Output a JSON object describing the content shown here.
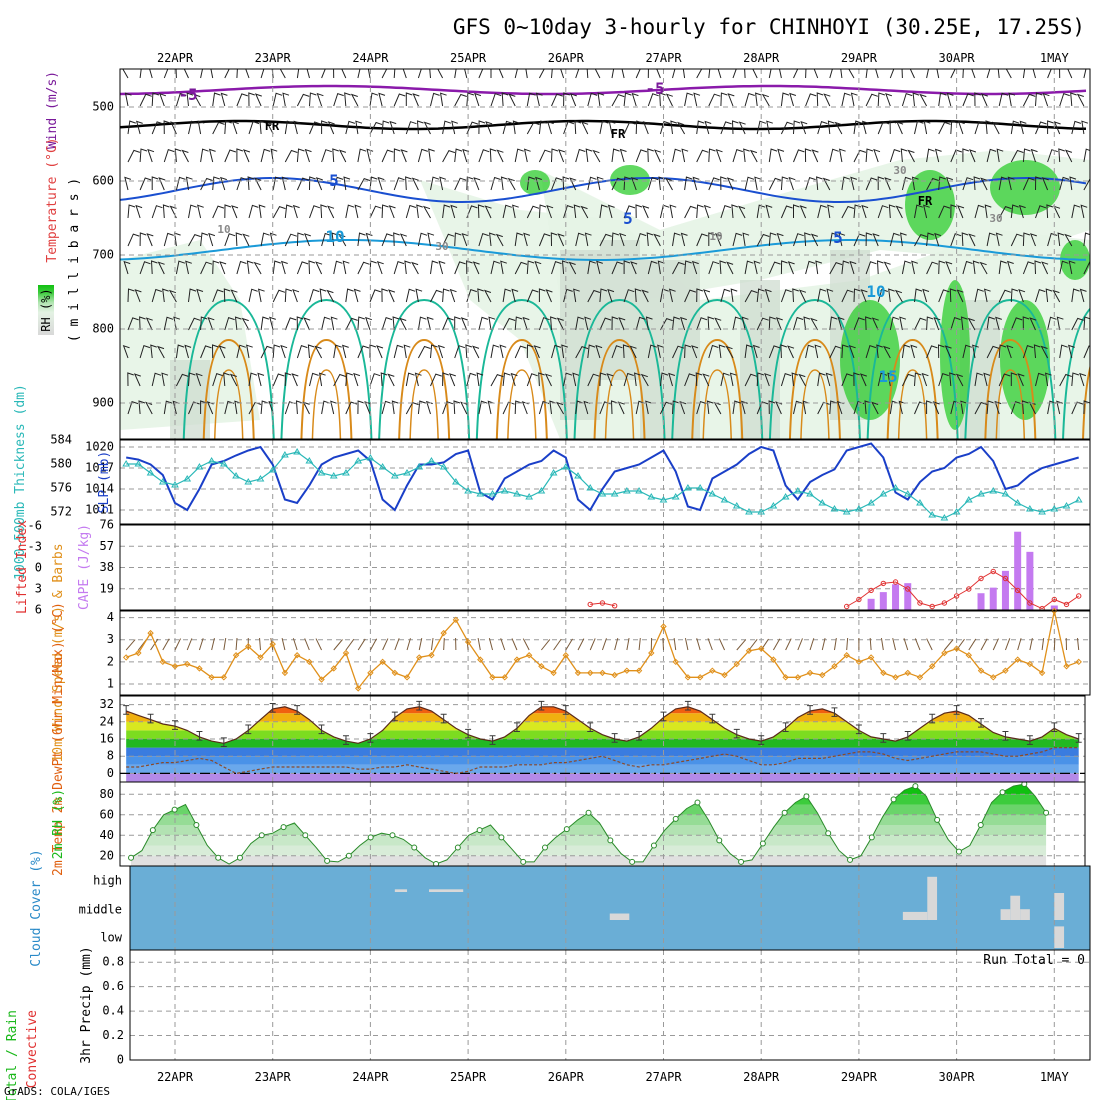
{
  "title": "GFS 0~10day 3-hourly for CHINHOYI (30.25E, 17.25S)",
  "credit": "GrADS: COLA/IGES",
  "dates": [
    "22APR",
    "23APR",
    "24APR",
    "25APR",
    "26APR",
    "27APR",
    "28APR",
    "29APR",
    "30APR",
    "1MAY"
  ],
  "colors": {
    "rh_green": "#2ecc2e",
    "temp_purple": "#8a1aaa",
    "temp_blue": "#1a4fd0",
    "temp_lightblue": "#1a9ad8",
    "temp_teal": "#1ab898",
    "temp_orange": "#d88a1a",
    "slp": "#1a3fc8",
    "thickness": "#2ab8b8",
    "cape": "#c47af0",
    "lifted": "#e03030",
    "wind10m": "#e0901a",
    "cloud_bg": "#6aaed6",
    "cloud_bar": "#d8d8d8"
  },
  "chart_data": [
    {
      "type": "heatmap",
      "panel": "upper-air cross section",
      "ylabel_parts": [
        "Wind (m/s)",
        "Temperature (°C)",
        "RH (%)"
      ],
      "ylabel_units": "( m i l l i b a r s )",
      "y_ticks": [
        "500",
        "600",
        "700",
        "800",
        "900"
      ],
      "contour_labels": [
        "-5",
        "-5",
        "FR",
        "FR",
        "FR",
        "5",
        "5",
        "5",
        "10",
        "10",
        "15",
        "10",
        "30",
        "30",
        "10",
        "30"
      ],
      "rh_scale": "RH (%)"
    },
    {
      "type": "line",
      "panel": "thickness and sea level pressure",
      "ylabel_left": "1000-500mb Thickness (dm)",
      "ylabel_right": "SLP (mb)",
      "left_ticks": [
        "584",
        "580",
        "576",
        "572"
      ],
      "right_ticks": [
        "1020",
        "1017",
        "1014",
        "1011"
      ],
      "left_ylim": [
        570,
        584
      ],
      "right_ylim": [
        1009,
        1021
      ],
      "series": [
        {
          "name": "SLP (mb)",
          "values": [
            1018.5,
            1018.2,
            1017.5,
            1016.0,
            1012.0,
            1011.0,
            1014.0,
            1017.5,
            1018.0,
            1018.8,
            1019.5,
            1020.0,
            1017.5,
            1012.5,
            1012.0,
            1014.5,
            1017.5,
            1018.5,
            1019.0,
            1019.5,
            1018.0,
            1012.5,
            1011.0,
            1014.5,
            1017.5,
            1017.5,
            1017.8,
            1019.0,
            1019.5,
            1013.5,
            1012.5,
            1015.5,
            1016.5,
            1017.5,
            1018.0,
            1019.5,
            1018.5,
            1012.5,
            1011.0,
            1014.0,
            1016.5,
            1017.0,
            1017.5,
            1018.5,
            1019.5,
            1016.5,
            1011.5,
            1011.0,
            1015.5,
            1016.5,
            1017.5,
            1019.0,
            1020.0,
            1019.5,
            1014.5,
            1012.5,
            1015.0,
            1016.0,
            1016.8,
            1019.5,
            1020.0,
            1020.5,
            1018.5,
            1013.5,
            1012.5,
            1015.0,
            1016.5,
            1017.0,
            1018.5,
            1019.0,
            1020.0,
            1018.0,
            1014.0,
            1014.5,
            1016.0,
            1017.0,
            1017.5,
            1018.0,
            1018.5
          ]
        },
        {
          "name": "1000-500mb Thickness (dm)",
          "values": [
            580.0,
            580.0,
            578.5,
            577.0,
            576.5,
            577.5,
            579.5,
            580.5,
            580.0,
            578.0,
            577.0,
            577.5,
            579.0,
            581.5,
            582.0,
            580.5,
            578.5,
            578.0,
            578.5,
            580.5,
            581.0,
            579.5,
            578.0,
            578.5,
            579.5,
            580.5,
            579.5,
            577.0,
            575.5,
            575.0,
            575.0,
            575.5,
            575.0,
            574.5,
            575.5,
            578.5,
            579.5,
            578.0,
            576.0,
            575.0,
            575.0,
            575.5,
            575.5,
            574.5,
            574.0,
            574.5,
            576.0,
            576.0,
            575.0,
            574.0,
            573.0,
            572.0,
            572.0,
            573.0,
            574.5,
            575.5,
            575.0,
            573.5,
            572.5,
            572.0,
            572.5,
            573.5,
            575.0,
            576.0,
            575.0,
            573.5,
            571.5,
            571.0,
            572.0,
            574.0,
            575.0,
            575.5,
            575.0,
            573.5,
            572.5,
            572.0,
            572.5,
            573.0,
            574.0
          ]
        }
      ]
    },
    {
      "type": "bar",
      "panel": "CAPE and lifted index",
      "ylabel_left": "Lifted Index",
      "ylabel_right": "CAPE (J/kg)",
      "left_ticks": [
        "-6",
        "-3",
        "0",
        "3",
        "6"
      ],
      "right_ticks": [
        "76",
        "57",
        "38",
        "19"
      ],
      "left_ylim": [
        6,
        -6
      ],
      "right_ylim": [
        0,
        76
      ],
      "cape_bars": [
        {
          "x": 29.125,
          "value": 10
        },
        {
          "x": 29.25,
          "value": 16
        },
        {
          "x": 29.375,
          "value": 23
        },
        {
          "x": 29.5,
          "value": 24
        },
        {
          "x": 30.25,
          "value": 15
        },
        {
          "x": 30.375,
          "value": 20
        },
        {
          "x": 30.5,
          "value": 35
        },
        {
          "x": 30.625,
          "value": 70
        },
        {
          "x": 30.75,
          "value": 52
        },
        {
          "x": 31.0,
          "value": 4
        }
      ],
      "lifted_index": [
        {
          "x": 26.25,
          "value": 5.2
        },
        {
          "x": 26.375,
          "value": 5.0
        },
        {
          "x": 26.5,
          "value": 5.4
        },
        {
          "x": 28.875,
          "value": 5.5
        },
        {
          "x": 29.0,
          "value": 4.5
        },
        {
          "x": 29.125,
          "value": 3.2
        },
        {
          "x": 29.25,
          "value": 2.2
        },
        {
          "x": 29.375,
          "value": 2.0
        },
        {
          "x": 29.5,
          "value": 3.0
        },
        {
          "x": 29.625,
          "value": 5.0
        },
        {
          "x": 29.75,
          "value": 5.5
        },
        {
          "x": 29.875,
          "value": 5.0
        },
        {
          "x": 30.0,
          "value": 4.0
        },
        {
          "x": 30.125,
          "value": 3.0
        },
        {
          "x": 30.25,
          "value": 1.5
        },
        {
          "x": 30.375,
          "value": 0.5
        },
        {
          "x": 30.5,
          "value": 1.5
        },
        {
          "x": 30.625,
          "value": 3.2
        },
        {
          "x": 30.75,
          "value": 5.0
        },
        {
          "x": 30.875,
          "value": 5.8
        },
        {
          "x": 31.0,
          "value": 4.5
        },
        {
          "x": 31.125,
          "value": 5.2
        },
        {
          "x": 31.25,
          "value": 4.0
        }
      ]
    },
    {
      "type": "line",
      "panel": "10m wind",
      "ylabel": "10m Wind Speed (m/s) & Barbs",
      "y_ticks": [
        "4",
        "3",
        "2",
        "1"
      ],
      "ylim": [
        0.5,
        4.3
      ],
      "series": [
        {
          "name": "10m Wind Speed",
          "values": [
            2.2,
            2.4,
            3.3,
            2.0,
            1.8,
            1.9,
            1.7,
            1.3,
            1.3,
            2.3,
            2.7,
            2.2,
            2.8,
            1.5,
            2.3,
            2.0,
            1.2,
            1.7,
            2.4,
            0.8,
            1.5,
            2.0,
            1.5,
            1.3,
            2.2,
            2.3,
            3.3,
            3.9,
            2.9,
            2.1,
            1.3,
            1.3,
            2.1,
            2.3,
            1.8,
            1.5,
            2.3,
            1.5,
            1.5,
            1.5,
            1.4,
            1.6,
            1.6,
            2.4,
            3.6,
            2.0,
            1.3,
            1.3,
            1.6,
            1.4,
            1.9,
            2.5,
            2.6,
            2.1,
            1.3,
            1.3,
            1.5,
            1.4,
            1.8,
            2.3,
            2.0,
            2.2,
            1.5,
            1.3,
            1.5,
            1.3,
            1.8,
            2.4,
            2.6,
            2.3,
            1.6,
            1.3,
            1.6,
            2.1,
            1.9,
            1.5,
            4.3,
            1.8,
            2.0
          ]
        }
      ]
    },
    {
      "type": "area",
      "panel": "2m temperature and dew point",
      "ylabel": "2m Temp 2m DewPt (6hr Min/Max) (°C)",
      "y_ticks": [
        "32",
        "24",
        "16",
        "8",
        "0"
      ],
      "ylim": [
        -4,
        36
      ],
      "series": [
        {
          "name": "2m Temp",
          "values": [
            29,
            27,
            25,
            23,
            22,
            20,
            17,
            15,
            14,
            16,
            20,
            25,
            30,
            31,
            29,
            25,
            20,
            17,
            15,
            14,
            16,
            20,
            26,
            30,
            31,
            29,
            25,
            21,
            18,
            16,
            15,
            17,
            21,
            27,
            31,
            31,
            29,
            25,
            21,
            18,
            16,
            15,
            17,
            21,
            26,
            30,
            31,
            29,
            25,
            21,
            18,
            16,
            15,
            17,
            21,
            26,
            29,
            30,
            28,
            24,
            20,
            17,
            16,
            15,
            17,
            21,
            25,
            28,
            29,
            27,
            23,
            19,
            17,
            16,
            15,
            17,
            21,
            18,
            16
          ]
        },
        {
          "name": "2m DewPt",
          "values": [
            3,
            3,
            4,
            5,
            5,
            6,
            7,
            6,
            3,
            0,
            1,
            2,
            3,
            3,
            3,
            3,
            3,
            3,
            3,
            2,
            2,
            3,
            3,
            4,
            3,
            2,
            1,
            0,
            1,
            3,
            3,
            3,
            4,
            4,
            4,
            5,
            5,
            6,
            7,
            8,
            6,
            4,
            3,
            4,
            4,
            5,
            6,
            7,
            8,
            9,
            8,
            6,
            4,
            4,
            5,
            7,
            7,
            7,
            8,
            9,
            10,
            10,
            9,
            7,
            6,
            7,
            8,
            9,
            10,
            10,
            10,
            9,
            8,
            8,
            9,
            10,
            12,
            12,
            12
          ]
        }
      ]
    },
    {
      "type": "area",
      "panel": "2m relative humidity",
      "ylabel": "2m RH (%)",
      "y_ticks": [
        "80",
        "60",
        "40",
        "20"
      ],
      "ylim": [
        10,
        92
      ],
      "series": [
        {
          "name": "2m RH",
          "values": [
            18,
            25,
            45,
            60,
            65,
            70,
            50,
            30,
            18,
            12,
            18,
            32,
            40,
            42,
            48,
            52,
            40,
            28,
            15,
            14,
            20,
            30,
            38,
            42,
            40,
            36,
            28,
            18,
            12,
            16,
            28,
            40,
            45,
            50,
            38,
            26,
            14,
            14,
            28,
            38,
            46,
            55,
            62,
            52,
            35,
            22,
            14,
            14,
            30,
            45,
            56,
            66,
            72,
            55,
            35,
            22,
            14,
            16,
            32,
            48,
            62,
            72,
            78,
            62,
            42,
            25,
            16,
            20,
            38,
            58,
            75,
            84,
            88,
            78,
            55,
            36,
            24,
            30,
            50,
            72,
            82,
            88,
            90,
            78,
            62
          ]
        }
      ]
    },
    {
      "type": "bar",
      "panel": "cloud cover",
      "ylabel": "Cloud Cover (%)",
      "y_ticks": [
        "high",
        "middle",
        "low"
      ],
      "bars": [
        {
          "level": "high",
          "x_start": 24.25,
          "x_end": 24.375,
          "value": 5
        },
        {
          "level": "high",
          "x_start": 24.6,
          "x_end": 24.95,
          "value": 5
        },
        {
          "level": "middle",
          "x_start": 26.45,
          "x_end": 26.65,
          "value": 12
        },
        {
          "level": "middle",
          "x_start": 29.45,
          "x_end": 29.7,
          "value": 15
        },
        {
          "level": "middle",
          "x_start": 29.7,
          "x_end": 29.8,
          "value": 80
        },
        {
          "level": "middle",
          "x_start": 30.45,
          "x_end": 30.55,
          "value": 20
        },
        {
          "level": "middle",
          "x_start": 30.55,
          "x_end": 30.65,
          "value": 45
        },
        {
          "level": "middle",
          "x_start": 30.65,
          "x_end": 30.75,
          "value": 20
        },
        {
          "level": "middle",
          "x_start": 31.0,
          "x_end": 31.1,
          "value": 50
        },
        {
          "level": "low",
          "x_start": 31.0,
          "x_end": 31.1,
          "value": 40
        }
      ]
    },
    {
      "type": "bar",
      "panel": "3hr precipitation",
      "ylabel_parts": [
        "Total / Rain",
        "Convective",
        "3hr Precip (mm)"
      ],
      "y_ticks": [
        "0.8",
        "0.6",
        "0.4",
        "0.2",
        "0"
      ],
      "ylim": [
        0,
        0.9
      ],
      "annotation": "Run Total = 0",
      "values": []
    }
  ]
}
